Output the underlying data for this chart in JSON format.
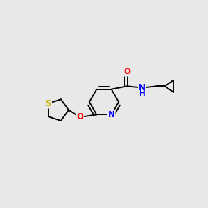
{
  "background_color": "#e8e8e8",
  "bond_color": "#000000",
  "atom_colors": {
    "S": "#c8b400",
    "O": "#ff0000",
    "N": "#0000ff",
    "C": "#000000",
    "H": "#555555"
  },
  "figsize": [
    3.0,
    3.0
  ],
  "dpi": 100,
  "xlim": [
    0,
    10
  ],
  "ylim": [
    0,
    10
  ]
}
